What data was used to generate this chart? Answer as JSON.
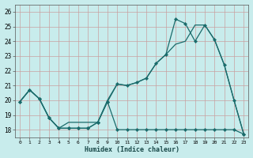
{
  "xlabel": "Humidex (Indice chaleur)",
  "ylabel": "",
  "background_color": "#c8ecec",
  "grid_color": "#c8a0a0",
  "line_color": "#1a6b6b",
  "xlim": [
    -0.5,
    23.5
  ],
  "ylim": [
    17.5,
    26.5
  ],
  "yticks": [
    18,
    19,
    20,
    21,
    22,
    23,
    24,
    25,
    26
  ],
  "xticks": [
    0,
    1,
    2,
    3,
    4,
    5,
    6,
    7,
    8,
    9,
    10,
    11,
    12,
    13,
    14,
    15,
    16,
    17,
    18,
    19,
    20,
    21,
    22,
    23
  ],
  "series1_x": [
    0,
    1,
    2,
    3,
    4,
    5,
    6,
    7,
    8,
    9,
    10,
    11,
    12,
    13,
    14,
    15,
    16,
    17,
    18,
    19,
    20,
    21,
    22,
    23
  ],
  "series1_y": [
    19.9,
    20.7,
    20.1,
    18.8,
    18.1,
    18.1,
    18.1,
    18.1,
    18.5,
    19.9,
    18.0,
    18.0,
    18.0,
    18.0,
    18.0,
    18.0,
    18.0,
    18.0,
    18.0,
    18.0,
    18.0,
    18.0,
    18.0,
    17.7
  ],
  "series2_x": [
    0,
    1,
    2,
    3,
    4,
    5,
    6,
    7,
    8,
    9,
    10,
    11,
    12,
    13,
    14,
    15,
    16,
    17,
    18,
    19,
    20,
    21,
    22,
    23
  ],
  "series2_y": [
    19.9,
    20.7,
    20.1,
    18.8,
    18.1,
    18.1,
    18.1,
    18.1,
    18.5,
    19.9,
    21.1,
    21.0,
    21.2,
    21.5,
    22.5,
    23.1,
    25.5,
    25.2,
    24.0,
    25.1,
    24.1,
    22.4,
    20.0,
    17.7
  ],
  "series3_x": [
    0,
    1,
    2,
    3,
    4,
    5,
    6,
    7,
    8,
    9,
    10,
    11,
    12,
    13,
    14,
    15,
    16,
    17,
    18,
    19,
    20,
    21,
    22,
    23
  ],
  "series3_y": [
    19.9,
    20.7,
    20.1,
    18.8,
    18.1,
    18.5,
    18.5,
    18.5,
    18.5,
    20.0,
    21.1,
    21.0,
    21.2,
    21.5,
    22.5,
    23.1,
    23.8,
    24.0,
    25.1,
    25.1,
    24.1,
    22.4,
    20.0,
    17.7
  ]
}
